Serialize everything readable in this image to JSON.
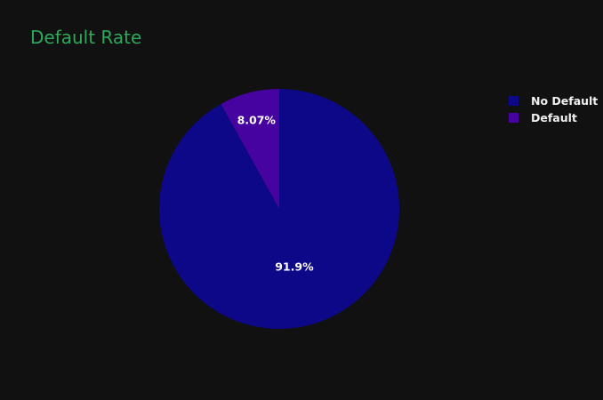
{
  "chart_data": {
    "type": "pie",
    "title": "Default Rate",
    "labels": [
      "No Default",
      "Default"
    ],
    "values": [
      91.93,
      8.07
    ],
    "percent_labels": [
      "91.9%",
      "8.07%"
    ],
    "colors": [
      "#0d0887",
      "#46039f"
    ],
    "start_angle_deg": 90,
    "direction": "counterclockwise",
    "legend": "top-right",
    "background": "#111111",
    "title_color": "#2ea85a"
  }
}
